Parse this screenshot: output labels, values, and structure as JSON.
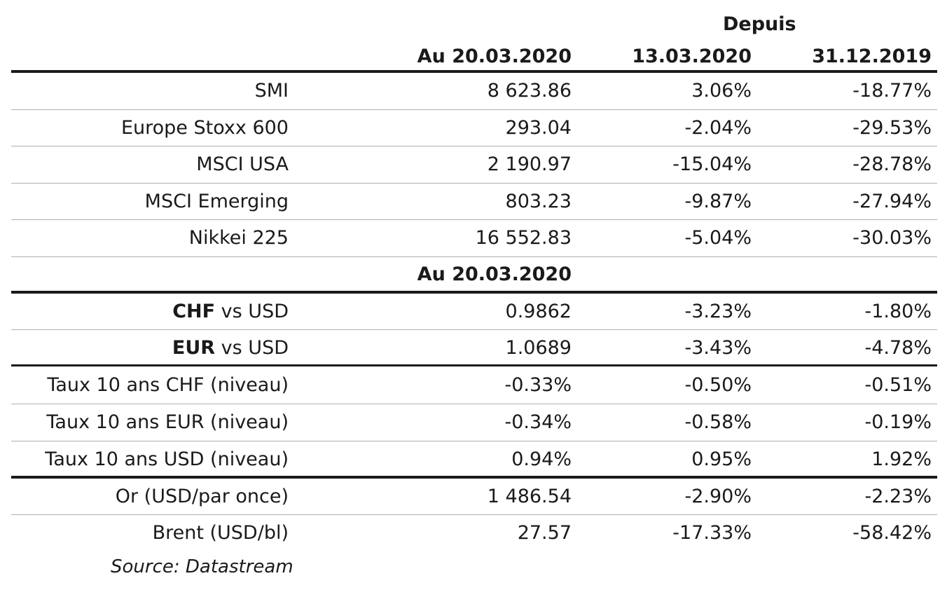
{
  "header": {
    "since_label": "Depuis",
    "col0": "Au 20.03.2020",
    "col1": "13.03.2020",
    "col2": "31.12.2019"
  },
  "equities": [
    {
      "label": "SMI",
      "v0": "8 623.86",
      "v1": "3.06%",
      "v2": "-18.77%"
    },
    {
      "label": "Europe Stoxx 600",
      "v0": "293.04",
      "v1": "-2.04%",
      "v2": "-29.53%"
    },
    {
      "label": "MSCI USA",
      "v0": "2 190.97",
      "v1": "-15.04%",
      "v2": "-28.78%"
    },
    {
      "label": "MSCI Emerging",
      "v0": "803.23",
      "v1": "-9.87%",
      "v2": "-27.94%"
    },
    {
      "label": "Nikkei 225",
      "v0": "16 552.83",
      "v1": "-5.04%",
      "v2": "-30.03%"
    }
  ],
  "section2_header": "Au 20.03.2020",
  "fx": [
    {
      "label_bold": "CHF",
      "label_rest": " vs USD",
      "v0": "0.9862",
      "v1": "-3.23%",
      "v2": "-1.80%"
    },
    {
      "label_bold": "EUR",
      "label_rest": " vs USD",
      "v0": "1.0689",
      "v1": "-3.43%",
      "v2": "-4.78%"
    }
  ],
  "rates": [
    {
      "label": "Taux 10 ans CHF (niveau)",
      "v0": "-0.33%",
      "v1": "-0.50%",
      "v2": "-0.51%"
    },
    {
      "label": "Taux 10 ans EUR (niveau)",
      "v0": "-0.34%",
      "v1": "-0.58%",
      "v2": "-0.19%"
    },
    {
      "label": "Taux 10 ans USD (niveau)",
      "v0": "0.94%",
      "v1": "0.95%",
      "v2": "1.92%"
    }
  ],
  "commodities": [
    {
      "label": "Or (USD/par once)",
      "v0": "1 486.54",
      "v1": "-2.90%",
      "v2": "-2.23%"
    },
    {
      "label": "Brent (USD/bl)",
      "v0": "27.57",
      "v1": "-17.33%",
      "v2": "-58.42%"
    }
  ],
  "source": "Source: Datastream",
  "colors": {
    "text": "#1a1a1a",
    "thin_rule": "#b0b0b0",
    "thick_rule": "#1a1a1a"
  }
}
